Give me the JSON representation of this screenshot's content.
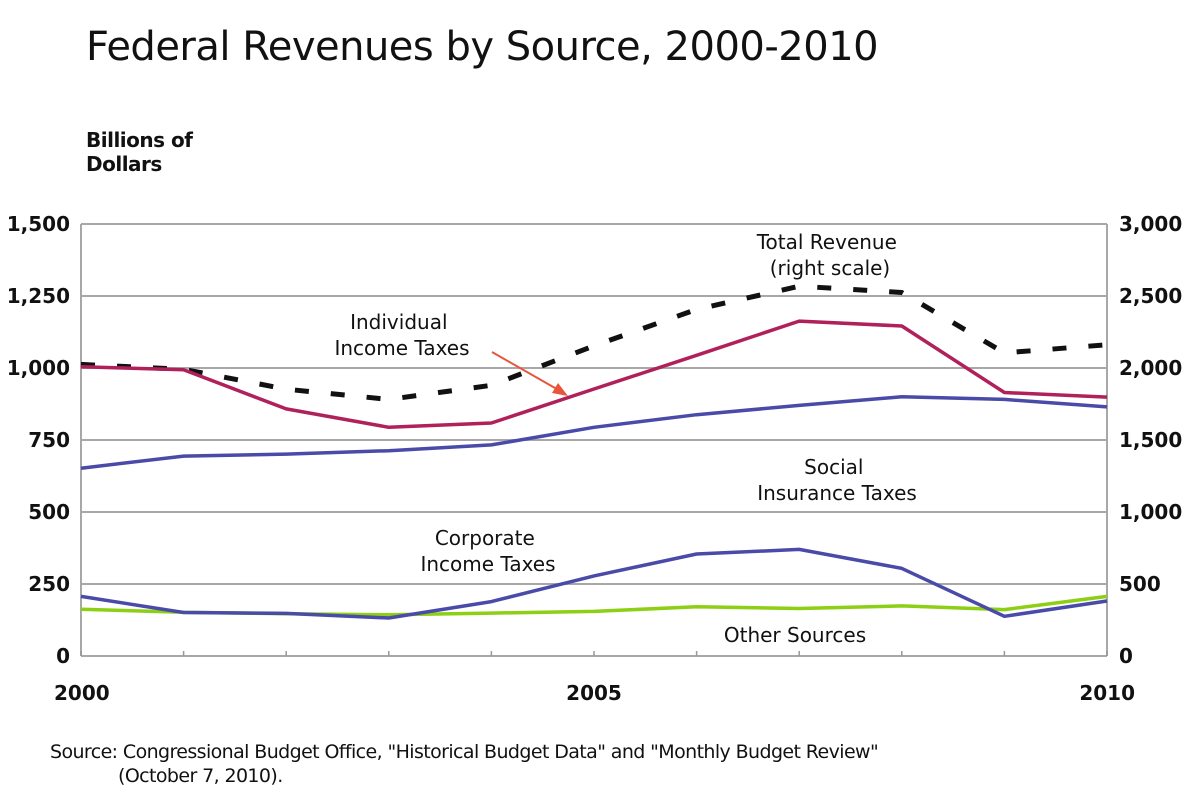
{
  "chart_data": {
    "type": "line",
    "title": "Federal Revenues by Source, 2000-2010",
    "ylabel": "Billions of Dollars",
    "ylabel_lines": [
      "Billions of",
      "Dollars"
    ],
    "xlabel": "",
    "x": [
      2000,
      2001,
      2002,
      2003,
      2004,
      2005,
      2006,
      2007,
      2008,
      2009,
      2010
    ],
    "x_tick_labels": [
      "2000",
      "2005",
      "2010"
    ],
    "x_tick_label_years": [
      2000,
      2005,
      2010
    ],
    "xlim": [
      2000,
      2010
    ],
    "ylim_left": [
      0,
      1500
    ],
    "ylim_right": [
      0,
      3000
    ],
    "y_ticks_left": [
      "0",
      "250",
      "500",
      "750",
      "1,000",
      "1,250",
      "1,500"
    ],
    "y_ticks_right": [
      "0",
      "500",
      "1,000",
      "1,500",
      "2,000",
      "2,500",
      "3,000"
    ],
    "grid": true,
    "legend": "none (inline labels)",
    "series": [
      {
        "name": "Individual Income Taxes",
        "axis": "left",
        "color": "#b0205a",
        "style": "solid",
        "values": [
          1004,
          994,
          858,
          794,
          809,
          927,
          1044,
          1163,
          1146,
          915,
          899
        ]
      },
      {
        "name": "Social Insurance Taxes",
        "axis": "left",
        "color": "#4a4aa8",
        "style": "solid",
        "values": [
          652,
          694,
          701,
          713,
          733,
          794,
          838,
          870,
          900,
          891,
          865
        ]
      },
      {
        "name": "Corporate Income Taxes",
        "axis": "left",
        "color": "#4a4aa8",
        "style": "solid",
        "values": [
          207,
          151,
          148,
          132,
          189,
          278,
          354,
          370,
          304,
          138,
          191
        ]
      },
      {
        "name": "Other Sources",
        "axis": "left",
        "color": "#8ccf14",
        "style": "solid",
        "values": [
          162,
          152,
          147,
          143,
          149,
          155,
          171,
          165,
          174,
          161,
          207
        ]
      },
      {
        "name": "Total Revenue (right scale)",
        "axis": "right",
        "color": "#111111",
        "style": "dashed",
        "values": [
          2025,
          1991,
          1853,
          1782,
          1880,
          2154,
          2407,
          2568,
          2524,
          2105,
          2162
        ]
      }
    ],
    "annotations": [
      {
        "id": "individual",
        "lines": [
          "Individual",
          "Income Taxes"
        ],
        "arrow": true,
        "arrow_color": "#e8553b"
      },
      {
        "id": "total",
        "lines": [
          "Total Revenue",
          "(right scale)"
        ]
      },
      {
        "id": "social",
        "lines": [
          "Social",
          "Insurance Taxes"
        ]
      },
      {
        "id": "corporate",
        "lines": [
          "Corporate",
          "Income Taxes"
        ]
      },
      {
        "id": "other",
        "lines": [
          "Other Sources"
        ]
      }
    ],
    "source": [
      "Source: Congressional Budget Office, \"Historical Budget Data\" and \"Monthly Budget Review\"",
      "(October 7, 2010)."
    ]
  }
}
